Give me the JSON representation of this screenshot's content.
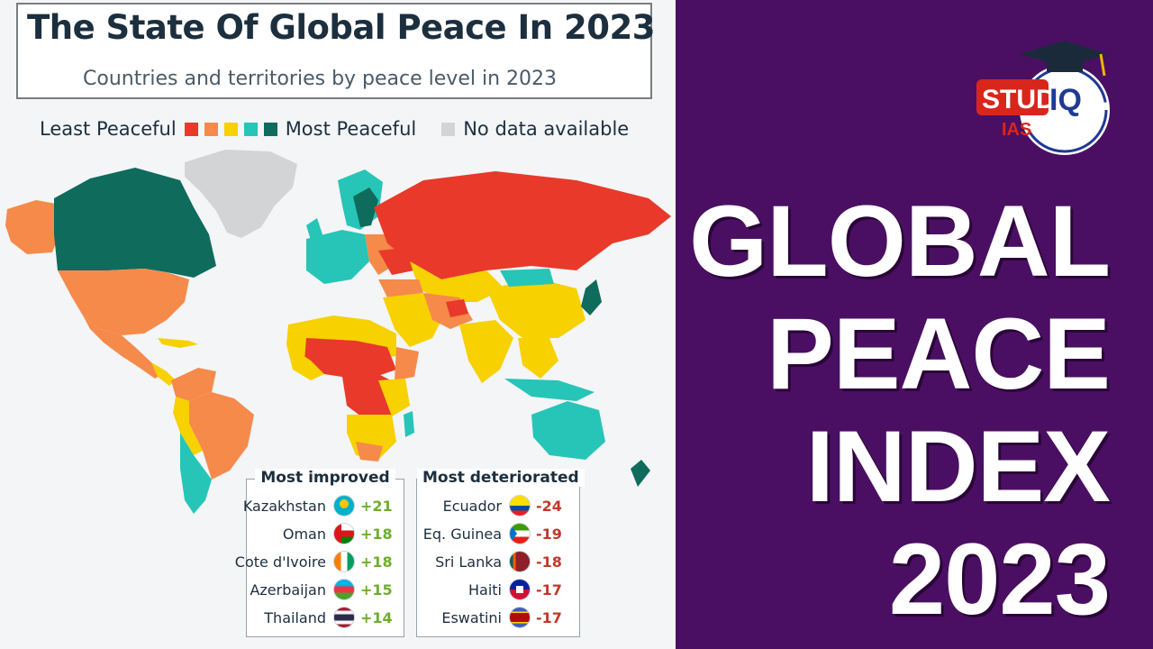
{
  "title": "The State Of Global Peace In 2023",
  "subtitle": "Countries and territories by peace level in 2023",
  "legend": {
    "least": "Least Peaceful",
    "most": "Most Peaceful",
    "nodata": "No data available",
    "colors": [
      "#e8392a",
      "#f58a4b",
      "#f7d100",
      "#26c5b8",
      "#0f6b5c"
    ],
    "nodata_color": "#d2d4d6"
  },
  "most_improved": {
    "heading": "Most improved",
    "rows": [
      {
        "name": "Kazakhstan",
        "change": "+21",
        "flag": "kazakhstan-flag-icon"
      },
      {
        "name": "Oman",
        "change": "+18",
        "flag": "oman-flag-icon"
      },
      {
        "name": "Cote d'Ivoire",
        "change": "+18",
        "flag": "cote-divoire-flag-icon"
      },
      {
        "name": "Azerbaijan",
        "change": "+15",
        "flag": "azerbaijan-flag-icon"
      },
      {
        "name": "Thailand",
        "change": "+14",
        "flag": "thailand-flag-icon"
      }
    ]
  },
  "most_deteriorated": {
    "heading": "Most deteriorated",
    "rows": [
      {
        "name": "Ecuador",
        "change": "-24",
        "flag": "ecuador-flag-icon"
      },
      {
        "name": "Eq. Guinea",
        "change": "-19",
        "flag": "eq-guinea-flag-icon"
      },
      {
        "name": "Sri Lanka",
        "change": "-18",
        "flag": "sri-lanka-flag-icon"
      },
      {
        "name": "Haiti",
        "change": "-17",
        "flag": "haiti-flag-icon"
      },
      {
        "name": "Eswatini",
        "change": "-17",
        "flag": "eswatini-flag-icon"
      }
    ]
  },
  "logo": {
    "line1": "STUDY",
    "line2": "IQ",
    "line3": "IAS"
  },
  "headline": [
    "GLOBAL",
    "PEACE",
    "INDEX",
    "2023"
  ],
  "colors": {
    "panel_bg": "#4a0f62",
    "logo_red": "#d9261c",
    "logo_blue": "#1f3a93"
  }
}
